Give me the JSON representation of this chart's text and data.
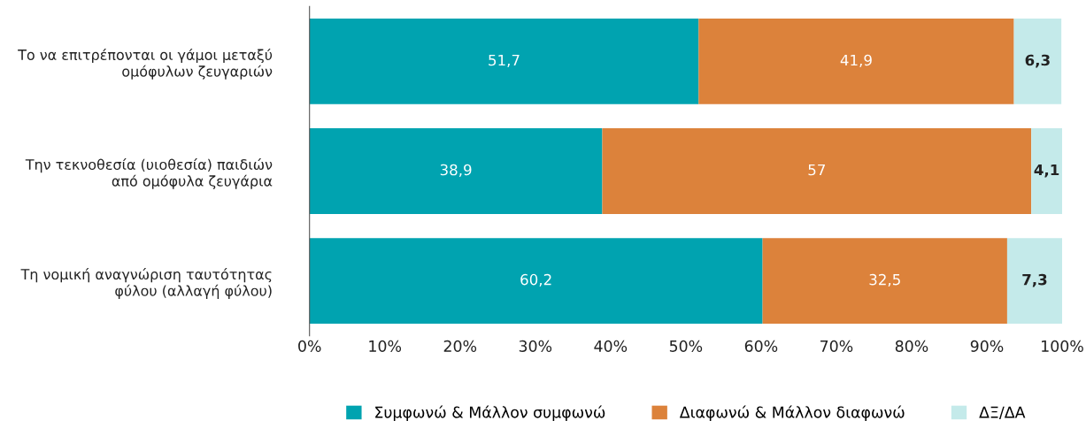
{
  "chart_data": {
    "type": "bar",
    "orientation": "horizontal",
    "stacked": true,
    "categories": [
      "Το να επιτρέπονται οι γάμοι μεταξύ\nομόφυλων ζευγαριών",
      "Την τεκνοθεσία (υιοθεσία) παιδιών\nαπό ομόφυλα ζευγάρια",
      "Τη νομική αναγνώριση ταυτότητας\nφύλου (αλλαγή φύλου)"
    ],
    "series": [
      {
        "name": "Συμφωνώ & Μάλλον συμφωνώ",
        "color": "#00a3b0",
        "values": [
          51.7,
          38.9,
          60.2
        ],
        "value_labels": [
          "51,7",
          "38,9",
          "60,2"
        ]
      },
      {
        "name": "Διαφωνώ & Μάλλον διαφωνώ",
        "color": "#dc823b",
        "values": [
          41.9,
          57,
          32.5
        ],
        "value_labels": [
          "41,9",
          "57",
          "32,5"
        ]
      },
      {
        "name": "ΔΞ/ΔΑ",
        "color": "#c4eaea",
        "values": [
          6.3,
          4.1,
          7.3
        ],
        "value_labels": [
          "6,3",
          "4,1",
          "7,3"
        ]
      }
    ],
    "xlim": [
      0,
      100
    ],
    "xticks": [
      {
        "value": 0,
        "label": "0%"
      },
      {
        "value": 10,
        "label": "10%"
      },
      {
        "value": 20,
        "label": "20%"
      },
      {
        "value": 30,
        "label": "30%"
      },
      {
        "value": 40,
        "label": "40%"
      },
      {
        "value": 50,
        "label": "50%"
      },
      {
        "value": 60,
        "label": "60%"
      },
      {
        "value": 70,
        "label": "70%"
      },
      {
        "value": 80,
        "label": "80%"
      },
      {
        "value": 90,
        "label": "90%"
      },
      {
        "value": 100,
        "label": "100%"
      }
    ],
    "grid": false,
    "legend": "bottom"
  }
}
